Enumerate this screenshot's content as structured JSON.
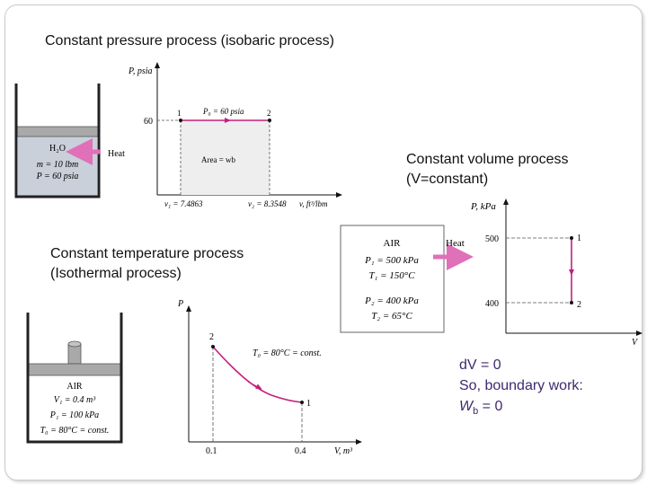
{
  "isobaric": {
    "heading": "Constant pressure process (isobaric process)",
    "y_axis_label": "P, psia",
    "x_axis_label": "v, ft³/lbm",
    "y_tick": "60",
    "state1": "1",
    "state2": "2",
    "line_label": "P₀ = 60 psia",
    "area_label": "Area = wb",
    "v1_label": "v₁ = 7.4863",
    "v2_label": "v₂ = 8.3548",
    "cylinder_lines": [
      "H₂O",
      "m = 10 lbm",
      "P = 60 psia"
    ],
    "heat_label": "Heat"
  },
  "isochoric": {
    "heading_line1": "Constant volume process",
    "heading_line2": "(V=constant)",
    "y_axis_label": "P, kPa",
    "x_axis_label": "V",
    "tick_500": "500",
    "tick_400": "400",
    "state1": "1",
    "state2": "2",
    "box_title": "AIR",
    "box_lines": [
      "P₁ = 500 kPa",
      "T₁ = 150°C",
      "P₂ = 400 kPa",
      "T₂ = 65°C"
    ],
    "heat_label": "Heat"
  },
  "isothermal": {
    "heading_line1": "Constant temperature process",
    "heading_line2": "(Isothermal process)",
    "y_axis_label": "P",
    "x_axis_label": "V, m³",
    "x_tick_1": "0.1",
    "x_tick_2": "0.4",
    "state1": "1",
    "state2": "2",
    "curve_label": "T₀ = 80°C = const.",
    "cylinder_lines": [
      "AIR",
      "V₁ = 0.4 m³",
      "P₁ = 100 kPa",
      "T₀ = 80°C = const."
    ]
  },
  "note": {
    "line1": "dV = 0",
    "line2": "So, boundary work:",
    "line3_var": "W",
    "line3_sub": "b",
    "line3_rest": " = 0"
  },
  "colors": {
    "process_line": "#c2207d",
    "heat_arrow": "#e070b8",
    "water": "#c9d0da",
    "piston": "#a9a9a9",
    "note_text": "#3d2a6e"
  }
}
